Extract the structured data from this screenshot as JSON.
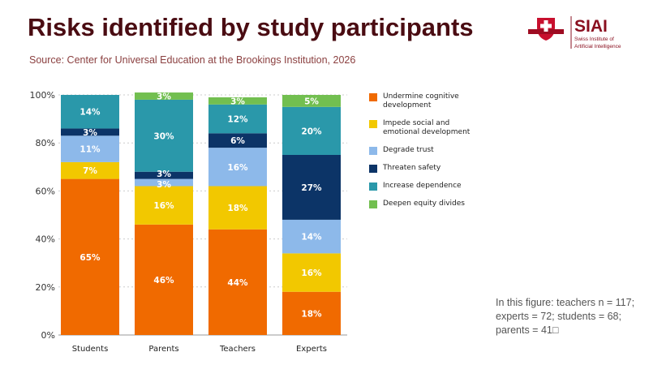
{
  "title": "Risks identified by study participants",
  "source": "Source: Center for Universal Education at the Brookings Institution, 2026",
  "logo": {
    "text": "SIAI",
    "subtitle": "Swiss Institute of Artificial Intelligence"
  },
  "note": "In this figure: teachers n = 117; experts = 72; students = 68; parents = 41□",
  "chart_data": {
    "type": "bar",
    "stacked": true,
    "categories": [
      "Students",
      "Parents",
      "Teachers",
      "Experts"
    ],
    "series": [
      {
        "name": "Undermine cognitive development",
        "color": "#f06a00",
        "values": [
          65,
          46,
          44,
          18
        ]
      },
      {
        "name": "Impede social and emotional development",
        "color": "#f2c800",
        "values": [
          7,
          16,
          18,
          16
        ]
      },
      {
        "name": "Degrade trust",
        "color": "#8db9ea",
        "values": [
          11,
          3,
          16,
          14
        ]
      },
      {
        "name": "Threaten safety",
        "color": "#0c3467",
        "values": [
          3,
          3,
          6,
          27
        ]
      },
      {
        "name": "Increase dependence",
        "color": "#2a98aa",
        "values": [
          14,
          30,
          12,
          20
        ]
      },
      {
        "name": "Deepen equity divides",
        "color": "#72bf50",
        "values": [
          0,
          3,
          3,
          5
        ]
      }
    ],
    "yticks": [
      "0%",
      "20%",
      "40%",
      "60%",
      "80%",
      "100%"
    ],
    "ylim": [
      0,
      100
    ],
    "grid": true,
    "legend": "right"
  }
}
